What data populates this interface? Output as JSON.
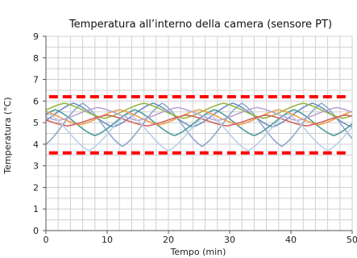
{
  "chart_data": {
    "type": "line",
    "title": "Temperatura all’interno della camera (sensore PT)",
    "xlabel": "Tempo (min)",
    "ylabel": "Temperatura (°C)",
    "xlim": [
      0,
      50
    ],
    "ylim": [
      0,
      9
    ],
    "x_ticks": [
      "0",
      "10",
      "20",
      "30",
      "40",
      "50"
    ],
    "y_ticks": [
      "0",
      "1",
      "2",
      "3",
      "4",
      "5",
      "6",
      "7",
      "8",
      "9"
    ],
    "grid": true,
    "legend": "none",
    "limits": [
      {
        "value": 6.2,
        "color": "#ff0000",
        "style": "dashed"
      },
      {
        "value": 3.6,
        "color": "#ff0000",
        "style": "dashed"
      }
    ],
    "series": [
      {
        "color": "#8fa8cc",
        "period": 13.0,
        "phase": 0.5,
        "amplitude": 1.0,
        "mean": 4.9
      },
      {
        "color": "#6a8fc2",
        "period": 13.0,
        "phase": 2.0,
        "amplitude": 0.55,
        "mean": 5.35
      },
      {
        "color": "#4d9a9a",
        "period": 13.0,
        "phase": 5.0,
        "amplitude": 0.6,
        "mean": 5.0
      },
      {
        "color": "#96b840",
        "period": 13.0,
        "phase": 3.5,
        "amplitude": 0.35,
        "mean": 5.55
      },
      {
        "color": "#f0a048",
        "period": 13.0,
        "phase": 7.5,
        "amplitude": 0.35,
        "mean": 5.25
      },
      {
        "color": "#d06464",
        "period": 13.0,
        "phase": 9.5,
        "amplitude": 0.25,
        "mean": 5.1
      },
      {
        "color": "#b8a4d0",
        "period": 13.0,
        "phase": 11.0,
        "amplitude": 0.3,
        "mean": 5.4
      },
      {
        "color": "#bcd0e6",
        "period": 13.0,
        "phase": 6.0,
        "amplitude": 0.85,
        "mean": 4.55
      }
    ]
  }
}
